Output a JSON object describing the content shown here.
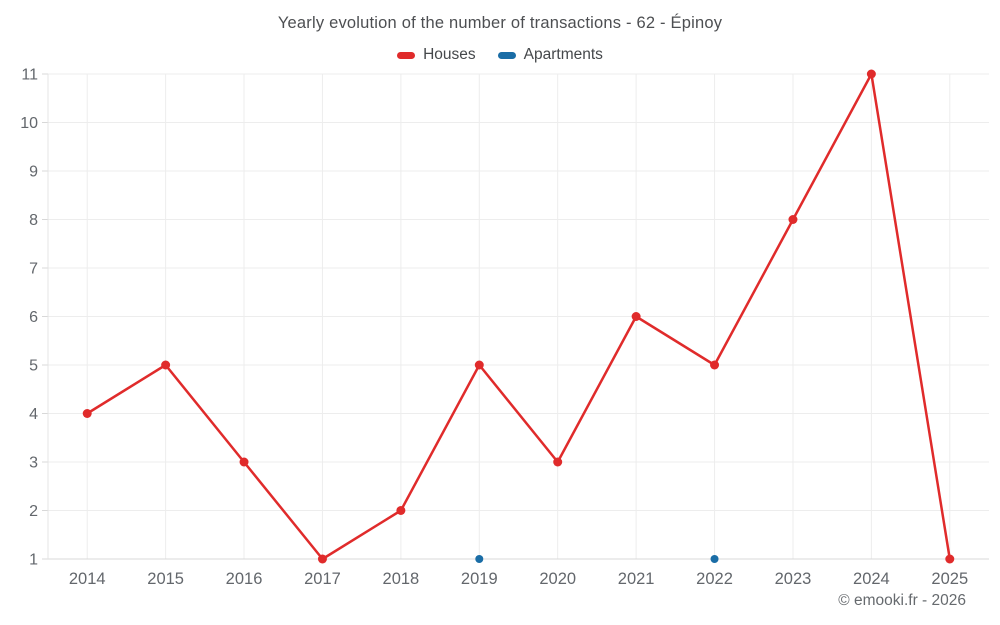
{
  "footer": "© emooki.fr - 2026",
  "colors": {
    "houses": "#e02b2b",
    "apartments": "#1a6da6",
    "title_text": "#4d4f52",
    "axis_text": "#63676c",
    "legend_text": "#45484b",
    "grid": "#ededed",
    "axis_line": "#d8d8d8",
    "plot_border": "#e4e4e4",
    "footer_text": "#666a6e"
  },
  "chart_data": {
    "type": "line",
    "title": "Yearly evolution of the number of transactions - 62 - Épinoy",
    "xlabel": "",
    "ylabel": "",
    "categories": [
      "2014",
      "2015",
      "2016",
      "2017",
      "2018",
      "2019",
      "2020",
      "2021",
      "2022",
      "2023",
      "2024",
      "2025"
    ],
    "series": [
      {
        "name": "Houses",
        "color": "#e02b2b",
        "draw_line": true,
        "marker_radius": 4.5,
        "values": [
          4,
          5,
          3,
          1,
          2,
          5,
          3,
          6,
          5,
          8,
          11,
          1
        ]
      },
      {
        "name": "Apartments",
        "color": "#1a6da6",
        "draw_line": false,
        "marker_radius": 4,
        "values": [
          null,
          null,
          null,
          null,
          null,
          1,
          null,
          null,
          1,
          null,
          null,
          null
        ]
      }
    ],
    "ylim": [
      1,
      11
    ],
    "yticks": [
      1,
      2,
      3,
      4,
      5,
      6,
      7,
      8,
      9,
      10,
      11
    ],
    "grid": true,
    "legend_position": "top"
  }
}
